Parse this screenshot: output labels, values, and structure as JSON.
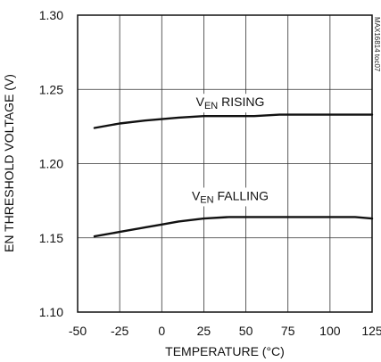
{
  "chart_data": {
    "type": "line",
    "title": "",
    "xlabel": "TEMPERATURE (°C)",
    "ylabel": "EN THRESHOLD VOLTAGE (V)",
    "xlim": [
      -50,
      125
    ],
    "ylim": [
      1.1,
      1.3
    ],
    "x_ticks": [
      -50,
      -25,
      0,
      25,
      50,
      75,
      100,
      125
    ],
    "x_tick_labels": [
      "-50",
      "-25",
      "0",
      "25",
      "50",
      "75",
      "100",
      "125"
    ],
    "y_ticks": [
      1.1,
      1.15,
      1.2,
      1.25,
      1.3
    ],
    "y_tick_labels": [
      "1.10",
      "1.15",
      "1.20",
      "1.25",
      "1.30"
    ],
    "grid": true,
    "series": [
      {
        "name": "VEN RISING",
        "color": "#111111",
        "x": [
          -40,
          -25,
          -10,
          0,
          10,
          25,
          40,
          55,
          70,
          85,
          100,
          115,
          125
        ],
        "y": [
          1.224,
          1.227,
          1.229,
          1.23,
          1.231,
          1.232,
          1.232,
          1.232,
          1.233,
          1.233,
          1.233,
          1.233,
          1.233
        ]
      },
      {
        "name": "VEN FALLING",
        "color": "#111111",
        "x": [
          -40,
          -25,
          -10,
          0,
          10,
          25,
          40,
          55,
          70,
          85,
          100,
          115,
          125
        ],
        "y": [
          1.151,
          1.154,
          1.157,
          1.159,
          1.161,
          1.163,
          1.164,
          1.164,
          1.164,
          1.164,
          1.164,
          1.164,
          1.163
        ]
      }
    ],
    "annotations": [
      {
        "series": 0,
        "main": "V",
        "sub": "EN",
        "rest": " RISING"
      },
      {
        "series": 1,
        "main": "V",
        "sub": "EN",
        "rest": " FALLING"
      }
    ],
    "figure_id": "MAX16814 toc07"
  }
}
